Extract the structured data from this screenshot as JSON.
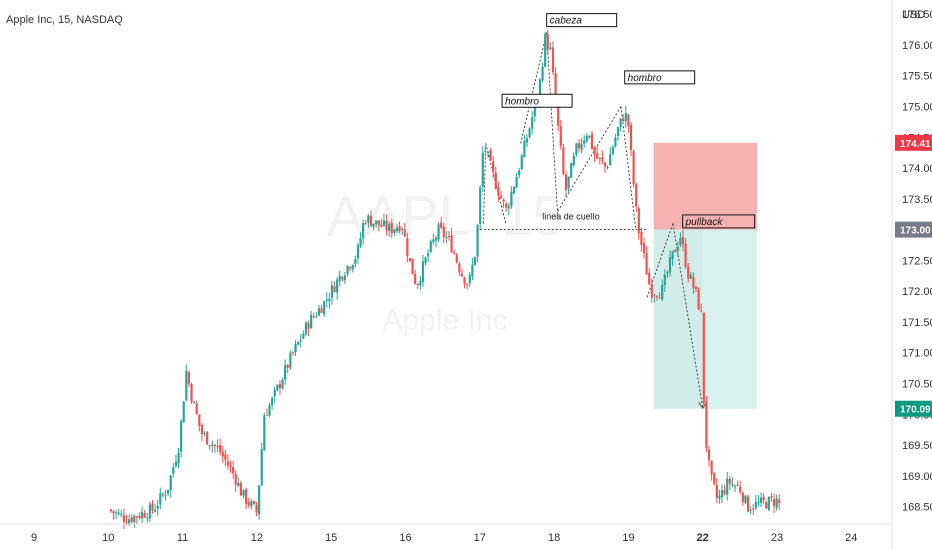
{
  "header": {
    "symbol_title": "Apple Inc, 15, NASDAQ",
    "currency": "USD"
  },
  "watermark": {
    "ticker": "AAPL, 15",
    "name": "Apple Inc"
  },
  "colors": {
    "up": "#26a69a",
    "down": "#ef5350",
    "stop_zone": "#f7a9a8",
    "target_zone": "#d9f1ee",
    "price_label_current": "#787b86",
    "price_label_stop": "#f23645",
    "price_label_target": "#089981"
  },
  "chart_data": {
    "type": "candlestick",
    "ylim": [
      168.25,
      176.6
    ],
    "y_ticks": [
      168.5,
      169.0,
      169.5,
      170.0,
      170.5,
      171.0,
      171.5,
      172.0,
      172.5,
      173.0,
      173.5,
      174.0,
      174.5,
      175.0,
      175.5,
      176.0,
      176.5
    ],
    "y_tick_labels": [
      "168.50",
      "169.00",
      "169.50",
      "170.00",
      "170.50",
      "171.00",
      "171.50",
      "172.00",
      "172.50",
      "173.00",
      "173.50",
      "174.00",
      "174.50",
      "175.00",
      "175.50",
      "176.00",
      "176.50"
    ],
    "x_ticks": [
      {
        "label": "9",
        "t": 0
      },
      {
        "label": "10",
        "t": 1
      },
      {
        "label": "11",
        "t": 2
      },
      {
        "label": "12",
        "t": 3
      },
      {
        "label": "15",
        "t": 4
      },
      {
        "label": "16",
        "t": 5
      },
      {
        "label": "17",
        "t": 6
      },
      {
        "label": "18",
        "t": 7
      },
      {
        "label": "19",
        "t": 8
      },
      {
        "label": "22",
        "t": 9,
        "bold": true
      },
      {
        "label": "23",
        "t": 10
      },
      {
        "label": "24",
        "t": 11
      }
    ],
    "price_path": [
      [
        1.0,
        168.45
      ],
      [
        1.25,
        168.3
      ],
      [
        1.6,
        168.45
      ],
      [
        1.8,
        168.8
      ],
      [
        1.95,
        169.5
      ],
      [
        2.05,
        170.7
      ],
      [
        2.12,
        170.3
      ],
      [
        2.25,
        169.7
      ],
      [
        2.5,
        169.4
      ],
      [
        2.7,
        169.0
      ],
      [
        2.8,
        168.7
      ],
      [
        3.0,
        168.4
      ],
      [
        3.1,
        170.0
      ],
      [
        3.2,
        170.2
      ],
      [
        3.45,
        170.9
      ],
      [
        3.7,
        171.5
      ],
      [
        3.9,
        171.8
      ],
      [
        4.15,
        172.3
      ],
      [
        4.35,
        172.6
      ],
      [
        4.45,
        173.2
      ],
      [
        4.6,
        173.1
      ],
      [
        4.8,
        173.0
      ],
      [
        4.95,
        173.1
      ],
      [
        5.05,
        172.5
      ],
      [
        5.15,
        172.1
      ],
      [
        5.3,
        172.6
      ],
      [
        5.45,
        173.0
      ],
      [
        5.6,
        172.8
      ],
      [
        5.75,
        172.3
      ],
      [
        5.85,
        172.1
      ],
      [
        5.95,
        172.7
      ],
      [
        6.05,
        174.4
      ],
      [
        6.2,
        173.8
      ],
      [
        6.35,
        173.3
      ],
      [
        6.55,
        174.1
      ],
      [
        6.7,
        174.8
      ],
      [
        6.8,
        175.3
      ],
      [
        6.88,
        176.1
      ],
      [
        6.95,
        175.9
      ],
      [
        7.05,
        174.7
      ],
      [
        7.15,
        173.6
      ],
      [
        7.3,
        174.3
      ],
      [
        7.45,
        174.6
      ],
      [
        7.55,
        174.2
      ],
      [
        7.7,
        174.0
      ],
      [
        7.85,
        174.6
      ],
      [
        7.95,
        174.9
      ],
      [
        8.0,
        174.7
      ],
      [
        8.05,
        174.0
      ],
      [
        8.12,
        173.1
      ],
      [
        8.2,
        172.6
      ],
      [
        8.3,
        172.0
      ],
      [
        8.45,
        172.0
      ],
      [
        8.6,
        172.6
      ],
      [
        8.7,
        172.9
      ],
      [
        8.8,
        172.3
      ],
      [
        8.9,
        172.0
      ],
      [
        9.0,
        171.5
      ],
      [
        9.02,
        169.8
      ],
      [
        9.1,
        169.0
      ],
      [
        9.2,
        168.6
      ],
      [
        9.35,
        168.9
      ],
      [
        9.5,
        168.8
      ],
      [
        9.6,
        168.5
      ],
      [
        10.0,
        168.6
      ],
      [
        10.05,
        168.5
      ]
    ],
    "levels": {
      "neckline": 173.0,
      "stop": 174.41,
      "entry": 173.0,
      "target": 170.09
    },
    "price_labels": [
      {
        "value": "174.41",
        "kind": "stop"
      },
      {
        "value": "173.00",
        "kind": "current"
      },
      {
        "value": "170.09",
        "kind": "target"
      }
    ],
    "position_box": {
      "t_start": 8.34,
      "t_end": 9.73,
      "stop": 174.41,
      "entry": 173.0,
      "target": 170.09
    },
    "annotations": [
      {
        "text": "cabeza",
        "t": 6.9,
        "price": 176.33
      },
      {
        "text": "hombro",
        "t": 6.3,
        "price": 175.02
      },
      {
        "text": "hombro",
        "t": 7.95,
        "price": 175.4
      },
      {
        "text": "pullback",
        "t": 8.73,
        "price": 173.06
      },
      {
        "text": "linea de cuello",
        "t": 6.8,
        "price": 173.15
      }
    ],
    "pattern_lines": [
      {
        "from": [
          6.05,
          173.1
        ],
        "to": [
          6.08,
          174.4
        ]
      },
      {
        "from": [
          6.08,
          174.4
        ],
        "to": [
          6.35,
          173.1
        ]
      },
      {
        "from": [
          6.55,
          174.4
        ],
        "to": [
          6.9,
          176.2
        ]
      },
      {
        "from": [
          6.9,
          176.2
        ],
        "to": [
          7.05,
          173.2
        ]
      },
      {
        "from": [
          7.05,
          173.3
        ],
        "to": [
          7.9,
          175.0
        ]
      },
      {
        "from": [
          7.9,
          175.0
        ],
        "to": [
          8.1,
          173.0
        ]
      },
      {
        "from": [
          8.25,
          171.9
        ],
        "to": [
          8.6,
          173.1
        ]
      },
      {
        "from": [
          8.6,
          173.1
        ],
        "to": [
          9.0,
          170.1
        ]
      }
    ],
    "neckline_span": [
      6.0,
      8.25
    ]
  }
}
